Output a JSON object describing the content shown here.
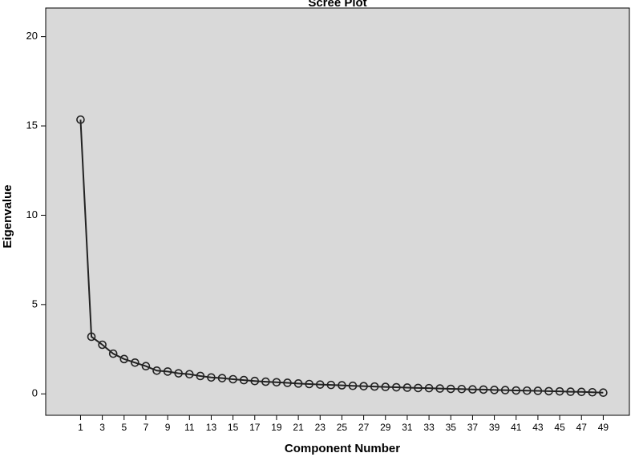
{
  "chart_data": {
    "type": "line",
    "title": "Scree Plot",
    "xlabel": "Component Number",
    "ylabel": "Eigenvalue",
    "x": [
      1,
      2,
      3,
      4,
      5,
      6,
      7,
      8,
      9,
      10,
      11,
      12,
      13,
      14,
      15,
      16,
      17,
      18,
      19,
      20,
      21,
      22,
      23,
      24,
      25,
      26,
      27,
      28,
      29,
      30,
      31,
      32,
      33,
      34,
      35,
      36,
      37,
      38,
      39,
      40,
      41,
      42,
      43,
      44,
      45,
      46,
      47,
      48,
      49
    ],
    "series": [
      {
        "name": "Eigenvalue",
        "color": "#222222",
        "values": [
          15.35,
          3.2,
          2.75,
          2.25,
          1.95,
          1.75,
          1.55,
          1.3,
          1.25,
          1.15,
          1.1,
          1.0,
          0.92,
          0.88,
          0.82,
          0.77,
          0.72,
          0.68,
          0.65,
          0.62,
          0.58,
          0.55,
          0.52,
          0.5,
          0.48,
          0.45,
          0.43,
          0.41,
          0.39,
          0.37,
          0.35,
          0.33,
          0.32,
          0.3,
          0.28,
          0.27,
          0.25,
          0.24,
          0.22,
          0.21,
          0.19,
          0.18,
          0.17,
          0.15,
          0.14,
          0.12,
          0.11,
          0.09,
          0.07
        ]
      }
    ],
    "xlim": [
      -2.2,
      51.4
    ],
    "xticks": [
      1,
      3,
      5,
      7,
      9,
      11,
      13,
      15,
      17,
      19,
      21,
      23,
      25,
      27,
      29,
      31,
      33,
      35,
      37,
      39,
      41,
      43,
      45,
      47,
      49
    ],
    "ylim": [
      -1.2,
      21.6
    ],
    "yticks": [
      0,
      5,
      10,
      15,
      20
    ],
    "background": "#d9d9d9"
  }
}
